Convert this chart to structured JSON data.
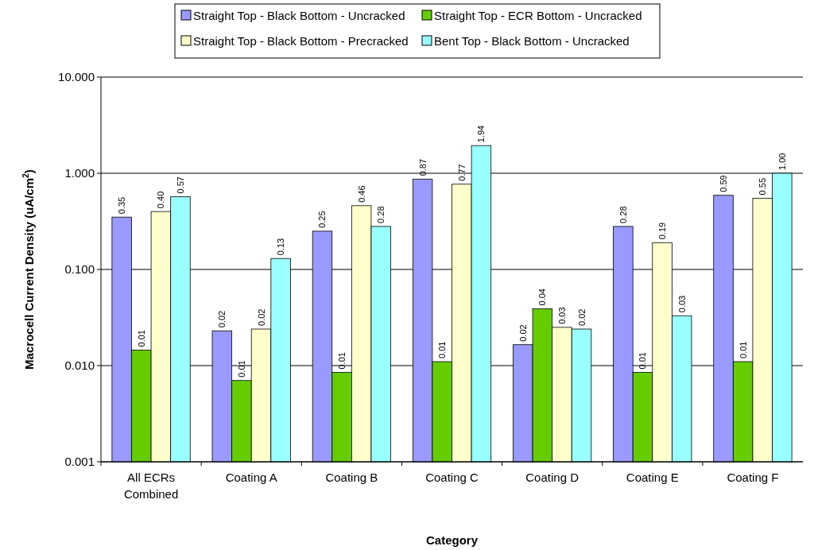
{
  "chart_data": {
    "type": "bar",
    "xlabel": "Category",
    "ylabel": "Macrocell Current Density (uA/cm$^{2}$)",
    "categories": [
      "All ECRs Combined",
      "Coating A",
      "Coating B",
      "Coating C",
      "Coating D",
      "Coating E",
      "Coating F"
    ],
    "series": [
      {
        "name": "Straight Top - Black Bottom - Uncracked",
        "color": "#9999ff",
        "values": [
          0.35,
          0.023,
          0.25,
          0.87,
          0.0165,
          0.28,
          0.59
        ],
        "value_labels": [
          "0.35",
          "0.02",
          "0.25",
          "0.87",
          "0.02",
          "0.28",
          "0.59"
        ]
      },
      {
        "name": "Straight Top - ECR Bottom - Uncracked",
        "color": "#66cc00",
        "values": [
          0.0145,
          0.007,
          0.0085,
          0.011,
          0.039,
          0.0085,
          0.011
        ],
        "value_labels": [
          "0.01",
          "0.01",
          "0.01",
          "0.01",
          "0.04",
          "0.01",
          "0.01"
        ]
      },
      {
        "name": "Straight Top - Black Bottom - Precracked",
        "color": "#ffffcc",
        "values": [
          0.4,
          0.024,
          0.46,
          0.77,
          0.025,
          0.19,
          0.55
        ],
        "value_labels": [
          "0.40",
          "0.02",
          "0.46",
          "0.77",
          "0.03",
          "0.19",
          "0.55"
        ]
      },
      {
        "name": "Bent Top - Black Bottom - Uncracked",
        "color": "#99ffff",
        "values": [
          0.57,
          0.13,
          0.28,
          1.94,
          0.024,
          0.033,
          1.0
        ],
        "value_labels": [
          "0.57",
          "0.13",
          "0.28",
          "1.94",
          "0.02",
          "0.03",
          "1.00"
        ]
      }
    ],
    "log": true,
    "ylim": [
      0.001,
      10
    ],
    "yticks": [
      {
        "value": 0.001,
        "label": "0.001"
      },
      {
        "value": 0.01,
        "label": "0.010"
      },
      {
        "value": 0.1,
        "label": "0.100"
      },
      {
        "value": 1,
        "label": "1.000"
      },
      {
        "value": 10,
        "label": "10.000"
      }
    ],
    "grid": "y",
    "legend": "top"
  }
}
